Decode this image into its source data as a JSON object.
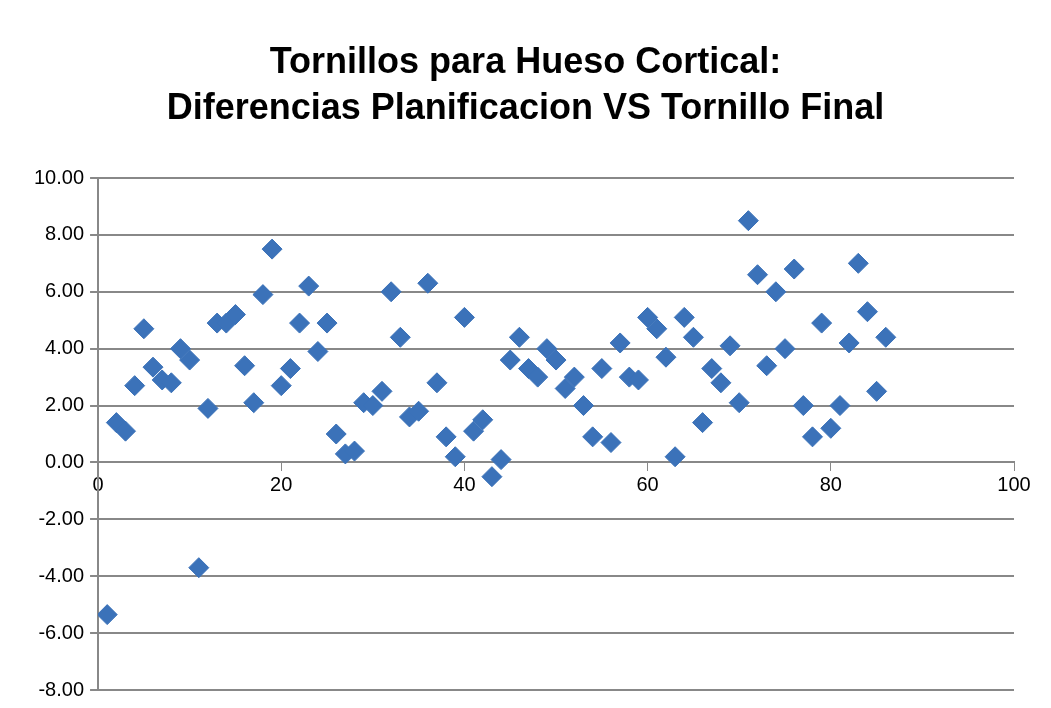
{
  "chart_data": {
    "type": "scatter",
    "title": "Tornillos para Hueso Cortical:\nDiferencias Planificacion VS Tornillo Final",
    "x": [
      1,
      2,
      3,
      4,
      5,
      6,
      7,
      8,
      9,
      10,
      11,
      12,
      13,
      14,
      15,
      16,
      17,
      18,
      19,
      20,
      21,
      22,
      23,
      24,
      25,
      26,
      27,
      28,
      29,
      30,
      31,
      32,
      33,
      34,
      35,
      36,
      37,
      38,
      39,
      40,
      41,
      42,
      43,
      44,
      45,
      46,
      47,
      48,
      49,
      50,
      51,
      52,
      53,
      54,
      55,
      56,
      57,
      58,
      59,
      60,
      61,
      62,
      63,
      64,
      65,
      66,
      67,
      68,
      69,
      70,
      71,
      72,
      73,
      74,
      75,
      76,
      77,
      78,
      79,
      80,
      81,
      82,
      83,
      84,
      85,
      86
    ],
    "series": [
      {
        "color": "#3b72b9",
        "values": [
          -5.35,
          1.4,
          1.1,
          2.7,
          4.7,
          3.35,
          2.9,
          2.8,
          4.0,
          3.6,
          -3.7,
          1.9,
          4.9,
          4.9,
          5.2,
          3.4,
          2.1,
          5.9,
          7.5,
          2.7,
          3.3,
          4.9,
          6.2,
          3.9,
          4.9,
          1.0,
          0.3,
          0.4,
          2.1,
          2.0,
          2.5,
          6.0,
          4.4,
          1.6,
          1.8,
          6.3,
          2.8,
          0.9,
          0.2,
          5.1,
          1.1,
          1.5,
          -0.5,
          0.1,
          3.6,
          4.4,
          3.3,
          3.0,
          4.0,
          3.6,
          2.6,
          3.0,
          2.0,
          0.9,
          3.3,
          0.7,
          4.2,
          3.0,
          2.9,
          5.1,
          4.7,
          3.7,
          0.2,
          5.1,
          4.4,
          1.4,
          3.3,
          2.8,
          4.1,
          2.1,
          8.5,
          6.6,
          3.4,
          6.0,
          4.0,
          6.8,
          2.0,
          0.9,
          4.9,
          1.2,
          2.0,
          4.2,
          7.0,
          5.3,
          2.5,
          4.4
        ]
      }
    ],
    "xlim": [
      0,
      100
    ],
    "xticks": [
      0,
      20,
      40,
      60,
      80,
      100
    ],
    "ylim": [
      -8,
      10
    ],
    "yticks": [
      {
        "value": -8,
        "label": "-8.00"
      },
      {
        "value": -6,
        "label": "-6.00"
      },
      {
        "value": -4,
        "label": "-4.00"
      },
      {
        "value": -2,
        "label": "-2.00"
      },
      {
        "value": 0,
        "label": "0.00"
      },
      {
        "value": 2,
        "label": "2.00"
      },
      {
        "value": 4,
        "label": "4.00"
      },
      {
        "value": 6,
        "label": "6.00"
      },
      {
        "value": 8,
        "label": "8.00"
      },
      {
        "value": 10,
        "label": "10.00"
      }
    ],
    "grid": "y",
    "marker": "diamond",
    "legend": false
  }
}
